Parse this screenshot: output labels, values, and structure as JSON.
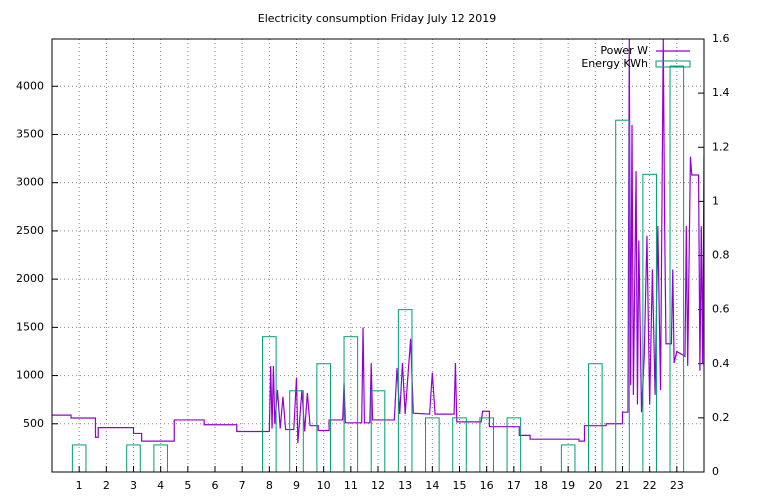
{
  "chart_data": {
    "type": "combo",
    "title": "Electricity consumption Friday July 12 2019",
    "xlim": [
      0,
      24
    ],
    "xticks": [
      1,
      2,
      3,
      4,
      5,
      6,
      7,
      8,
      9,
      10,
      11,
      12,
      13,
      14,
      15,
      16,
      17,
      18,
      19,
      20,
      21,
      22,
      23
    ],
    "ylim": [
      0,
      4490
    ],
    "yticks": [
      500,
      1000,
      1500,
      2000,
      2500,
      3000,
      3500,
      4000
    ],
    "y2lim": [
      0,
      1.6
    ],
    "y2ticks": [
      0,
      0.2,
      0.4,
      0.6,
      0.8,
      1,
      1.2,
      1.4,
      1.6
    ],
    "grid": true,
    "legend": "top-right",
    "series": [
      {
        "name": "Power W",
        "color": "#9400d3",
        "type": "line",
        "x": [
          0,
          0.7,
          0.7,
          1.6,
          1.6,
          1.7,
          1.7,
          3,
          3,
          3.3,
          3.3,
          4.5,
          4.5,
          5.6,
          5.6,
          6.8,
          6.8,
          8,
          8.05,
          8.1,
          8.15,
          8.2,
          8.3,
          8.4,
          8.5,
          8.6,
          8.9,
          9,
          9.05,
          9.2,
          9.3,
          9.4,
          9.5,
          9.8,
          9.8,
          10.2,
          10.2,
          10.7,
          10.75,
          10.8,
          11.4,
          11.45,
          11.5,
          11.7,
          11.75,
          11.8,
          12.6,
          12.7,
          12.8,
          12.9,
          13,
          13.2,
          13.3,
          13.9,
          14,
          14.1,
          14.8,
          14.85,
          14.9,
          15.8,
          15.85,
          16.1,
          16.1,
          17.2,
          17.2,
          17.6,
          17.6,
          19.4,
          19.4,
          19.6,
          19.6,
          20.4,
          20.4,
          21,
          21,
          21.2,
          21.25,
          21.3,
          21.35,
          21.4,
          21.5,
          21.55,
          21.6,
          21.7,
          21.8,
          21.9,
          22,
          22.1,
          22.2,
          22.3,
          22.4,
          22.5,
          22.55,
          22.6,
          22.8,
          22.85,
          22.9,
          23,
          23.3,
          23.35,
          23.4,
          23.5,
          23.55,
          23.8,
          23.85,
          23.9,
          23.95,
          24
        ],
        "values": [
          590,
          590,
          560,
          560,
          360,
          360,
          460,
          460,
          400,
          400,
          320,
          320,
          540,
          540,
          490,
          490,
          420,
          420,
          1100,
          450,
          1100,
          500,
          850,
          450,
          780,
          440,
          440,
          980,
          300,
          850,
          420,
          820,
          480,
          480,
          430,
          430,
          540,
          540,
          920,
          510,
          510,
          1500,
          510,
          510,
          1130,
          540,
          540,
          1080,
          600,
          1130,
          600,
          1380,
          610,
          600,
          1030,
          600,
          600,
          1130,
          520,
          520,
          630,
          630,
          470,
          470,
          380,
          380,
          340,
          340,
          320,
          320,
          480,
          480,
          500,
          500,
          620,
          620,
          4490,
          900,
          3600,
          800,
          3120,
          700,
          2400,
          620,
          1200,
          2450,
          700,
          2100,
          800,
          2550,
          850,
          4490,
          2600,
          1330,
          1330,
          2100,
          1130,
          1250,
          1200,
          2550,
          1100,
          3270,
          3080,
          3080,
          1050,
          2550,
          1130,
          3270
        ]
      },
      {
        "name": "Energy KWh",
        "color": "#009e73",
        "type": "box",
        "axis": "y2",
        "x": [
          1,
          3,
          4,
          8,
          9,
          10,
          11,
          12,
          13,
          14,
          15,
          16,
          17,
          19,
          20,
          21,
          22,
          23
        ],
        "values": [
          0.1,
          0.1,
          0.1,
          0.5,
          0.3,
          0.4,
          0.5,
          0.3,
          0.6,
          0.2,
          0.2,
          0.2,
          0.2,
          0.1,
          0.4,
          1.3,
          1.1,
          1.5
        ]
      }
    ]
  }
}
